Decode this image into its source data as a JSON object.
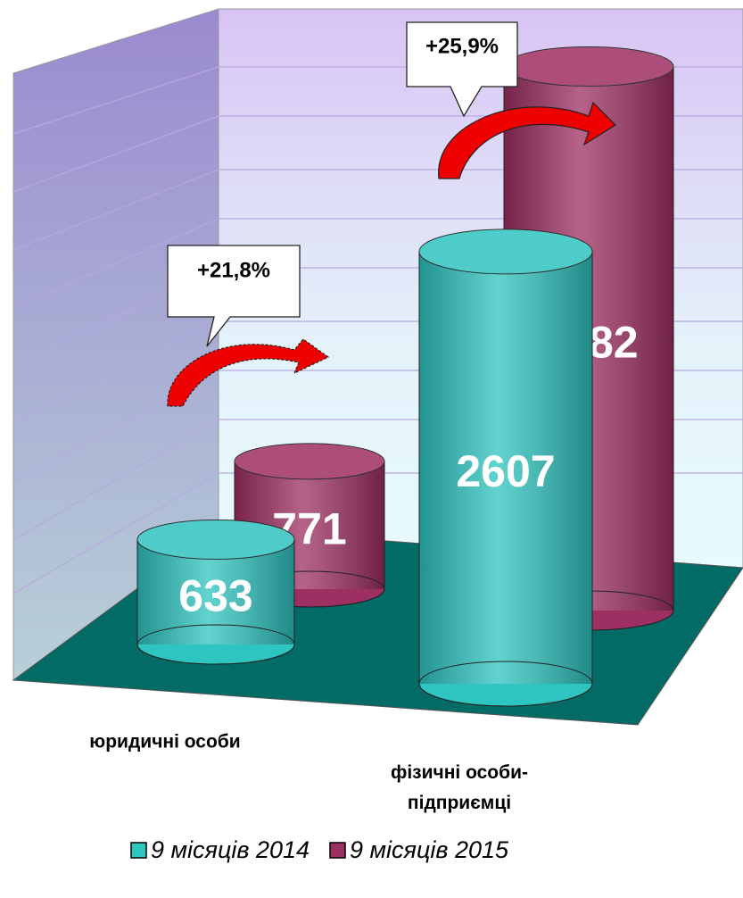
{
  "chart_data": {
    "type": "bar3d",
    "categories": [
      "юридичні особи",
      "фізичні особи-підприємці"
    ],
    "series": [
      {
        "name": "9 місяців 2014",
        "color": "#2ec4c0",
        "values": [
          633,
          2607
        ]
      },
      {
        "name": "9 місяців 2015",
        "color": "#9e2f62",
        "values": [
          771,
          3282
        ]
      }
    ],
    "annotations": [
      "+21,8%",
      "+25,9%"
    ],
    "ylim": [
      0,
      3500
    ]
  }
}
